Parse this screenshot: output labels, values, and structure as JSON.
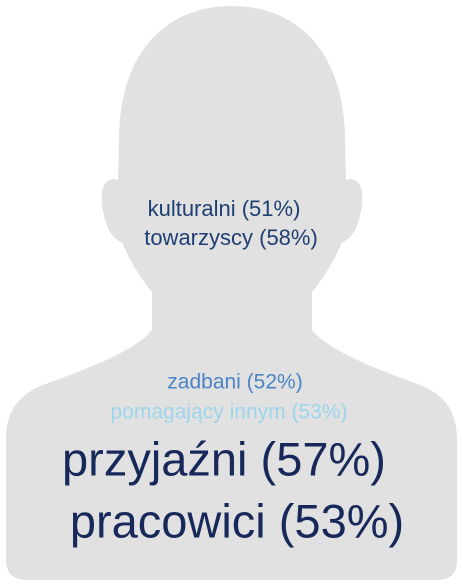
{
  "items": [
    {
      "text": "kulturalni (51%)"
    },
    {
      "text": "towarzyscy (58%)"
    },
    {
      "text": "zadbani (52%)"
    },
    {
      "text": "pomagający innym (53%)"
    },
    {
      "text": "przyjaźni (57%)"
    },
    {
      "text": "pracowici (53%)"
    }
  ]
}
